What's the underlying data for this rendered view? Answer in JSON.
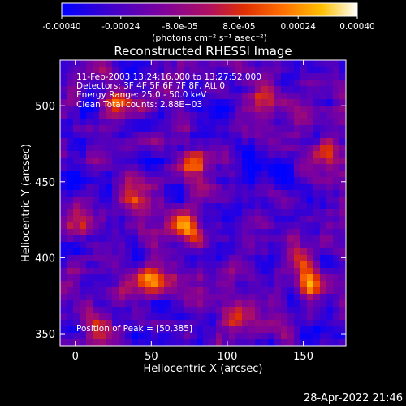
{
  "chart_data": {
    "type": "heatmap",
    "title": "Reconstructed RHESSI Image",
    "xlabel": "Heliocentric X (arcsec)",
    "ylabel": "Heliocentric Y (arcsec)",
    "xlim": [
      -10,
      178
    ],
    "ylim": [
      342,
      530
    ],
    "x_ticks": [
      "0",
      "50",
      "100",
      "150"
    ],
    "x_tick_values": [
      0,
      50,
      100,
      150
    ],
    "y_ticks": [
      "350",
      "400",
      "450",
      "500"
    ],
    "y_tick_values": [
      350,
      400,
      450,
      500
    ],
    "colorbar": {
      "range": [
        -0.0004,
        0.0004
      ],
      "tick_labels": [
        "-0.00040",
        "-0.00024",
        "-8.0e-05",
        "8.0e-05",
        "0.00024",
        "0.00040"
      ],
      "tick_values": [
        -0.0004,
        -0.00024,
        -8e-05,
        8e-05,
        0.00024,
        0.0004
      ],
      "units": "(photons cm⁻² s⁻¹ asec⁻²)",
      "colors": [
        "#0000ff",
        "#6a00a8",
        "#cc2a00",
        "#ff7a00",
        "#ffd000",
        "#ffffff"
      ]
    },
    "annotations": {
      "time_range": "11-Feb-2003 13:24:16.000 to 13:27:52.000",
      "detectors": "Detectors: 3F 4F 5F 6F 7F 8F, Att 0",
      "energy_range": "Energy Range: 25.0 - 50.0 keV",
      "method": "Clean     Total counts: 2.88E+03",
      "peak": "Position of Peak = [50,385]"
    },
    "peak_position": [
      50,
      385
    ],
    "hot_spots": [
      {
        "x": 50,
        "y": 385,
        "intensity": 1.0
      },
      {
        "x": 72,
        "y": 420,
        "intensity": 0.9
      },
      {
        "x": 30,
        "y": 500,
        "intensity": 0.75
      },
      {
        "x": 78,
        "y": 462,
        "intensity": 0.7
      },
      {
        "x": 155,
        "y": 382,
        "intensity": 0.8
      },
      {
        "x": 148,
        "y": 398,
        "intensity": 0.6
      },
      {
        "x": 40,
        "y": 440,
        "intensity": 0.55
      },
      {
        "x": 15,
        "y": 350,
        "intensity": 0.6
      },
      {
        "x": 105,
        "y": 360,
        "intensity": 0.5
      },
      {
        "x": 165,
        "y": 470,
        "intensity": 0.55
      },
      {
        "x": 125,
        "y": 505,
        "intensity": 0.45
      },
      {
        "x": 0,
        "y": 420,
        "intensity": 0.45
      }
    ]
  },
  "footer": {
    "timestamp": "28-Apr-2022 21:46"
  }
}
